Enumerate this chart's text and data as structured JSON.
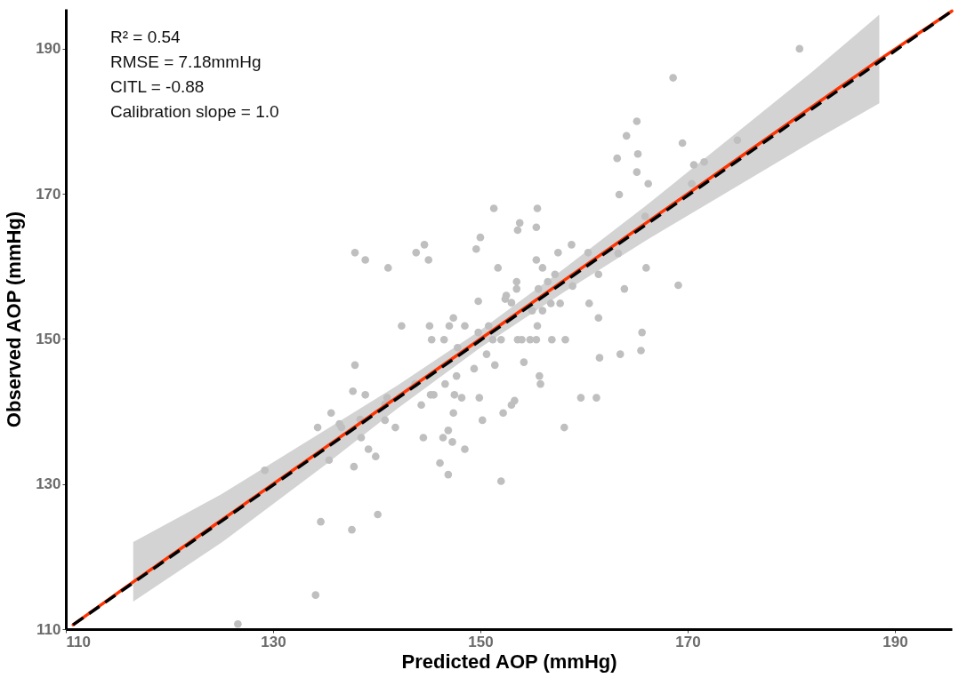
{
  "chart_data": {
    "type": "scatter",
    "xlabel": "Predicted AOP (mmHg)",
    "ylabel": "Observed AOP (mmHg)",
    "annotations": [
      "R² = 0.54",
      "RMSE = 7.18mmHg",
      "CITL = -0.88",
      "Calibration slope = 1.0"
    ],
    "xlim": [
      110,
      195.5
    ],
    "ylim": [
      110,
      195.5
    ],
    "xticks": [
      110,
      130,
      150,
      170,
      190
    ],
    "yticks": [
      110,
      130,
      150,
      170,
      190
    ],
    "grid": false,
    "series": [
      {
        "color": "#bfbfbf",
        "marker": "circle",
        "x": [
          126.6,
          134.1,
          134.6,
          137.6,
          140.1,
          129.2,
          135.4,
          137.8,
          134.3,
          135.6,
          136.4,
          136.6,
          137.7,
          138.9,
          138.4,
          138.5,
          139.2,
          139.9,
          140.8,
          141.0,
          140.8,
          141.8,
          143.7,
          144.3,
          145.2,
          145.5,
          146.6,
          147.7,
          147.5,
          148.2,
          149.9,
          150.2,
          147.4,
          146.9,
          146.4,
          147.3,
          148.5,
          144.5,
          146.1,
          146.9,
          153.8,
          153.6,
          155.4,
          150.0,
          149.6,
          144.6,
          143.8,
          145.0,
          137.9,
          138.9,
          141.1,
          158.8,
          157.5,
          155.4,
          156.0,
          151.7,
          157.2,
          156.5,
          153.5,
          153.5,
          155.6,
          152.5,
          152.4,
          153.0,
          149.8,
          157.7,
          156.8,
          156.0,
          155.0,
          147.4,
          142.4,
          145.1,
          147.0,
          148.5,
          150.8,
          155.5,
          149.8,
          145.3,
          146.5,
          151.2,
          152.0,
          153.6,
          154.0,
          154.8,
          155.4,
          156.9,
          158.2,
          147.8,
          150.6,
          154.2,
          151.4,
          149.4,
          137.9,
          155.7,
          155.8,
          159.7,
          153.3,
          153.0,
          152.2,
          158.1,
          165.1,
          164.1,
          169.5,
          163.2,
          165.2,
          165.1,
          166.2,
          170.6,
          171.6,
          174.8,
          170.4,
          163.4,
          165.9,
          151.3,
          155.5,
          160.4,
          163.3,
          166.0,
          161.4,
          158.9,
          163.9,
          160.5,
          161.4,
          169.1,
          165.6,
          165.5,
          163.5,
          161.5,
          161.2,
          180.8,
          152.0,
          168.6
        ],
        "values": [
          110.7,
          114.7,
          124.8,
          123.7,
          125.8,
          131.9,
          133.3,
          132.4,
          137.8,
          139.8,
          138.3,
          137.8,
          142.8,
          142.3,
          138.9,
          136.4,
          134.8,
          133.8,
          141.0,
          141.9,
          138.8,
          137.8,
          143.8,
          140.9,
          142.3,
          142.3,
          143.8,
          144.9,
          142.3,
          141.9,
          141.9,
          138.8,
          139.8,
          137.4,
          136.4,
          135.8,
          134.8,
          136.4,
          132.9,
          131.3,
          166.0,
          165.0,
          165.4,
          164.0,
          162.4,
          163.0,
          161.9,
          160.9,
          161.9,
          160.9,
          159.8,
          163.0,
          161.9,
          160.9,
          159.8,
          159.8,
          158.9,
          157.9,
          157.9,
          156.9,
          156.9,
          156.0,
          155.5,
          155.0,
          155.2,
          154.9,
          154.9,
          153.9,
          153.9,
          152.9,
          151.8,
          151.8,
          151.8,
          151.8,
          151.8,
          151.8,
          150.9,
          149.9,
          149.9,
          149.9,
          149.9,
          149.9,
          149.9,
          149.9,
          149.9,
          149.9,
          149.9,
          148.8,
          147.9,
          146.8,
          146.4,
          145.9,
          146.4,
          144.9,
          143.8,
          141.9,
          141.5,
          140.9,
          139.8,
          137.8,
          180.0,
          178.0,
          177.0,
          174.9,
          175.5,
          173.0,
          171.4,
          174.0,
          174.4,
          177.4,
          171.4,
          169.9,
          166.9,
          168.0,
          168.0,
          161.9,
          161.8,
          159.8,
          158.9,
          157.3,
          156.9,
          154.9,
          152.9,
          157.4,
          150.9,
          148.4,
          147.9,
          147.4,
          141.9,
          190.0,
          130.4,
          186.0
        ]
      },
      {
        "type": "line",
        "color": "#ff3300",
        "line_style": "solid",
        "x": [
          110.7,
          116.5,
          125,
          135,
          142,
          150,
          158,
          166,
          174,
          182,
          188.5,
          195.5
        ],
        "values": [
          110.6,
          116.5,
          125,
          135,
          142,
          150,
          158,
          166,
          174,
          182,
          188.5,
          195.2
        ],
        "lower": [
          null,
          113.8,
          121.9,
          132.6,
          140.4,
          148.8,
          156.4,
          163.6,
          170.4,
          177.2,
          182.5,
          null
        ],
        "upper": [
          null,
          122.0,
          128.6,
          137.4,
          143.6,
          151.2,
          159.6,
          168.4,
          177.6,
          186.8,
          194.7,
          null
        ]
      },
      {
        "type": "line",
        "color": "#000000",
        "line_style": "dashed",
        "x": [
          110.7,
          195.5
        ],
        "values": [
          110.6,
          195.2
        ]
      }
    ]
  }
}
